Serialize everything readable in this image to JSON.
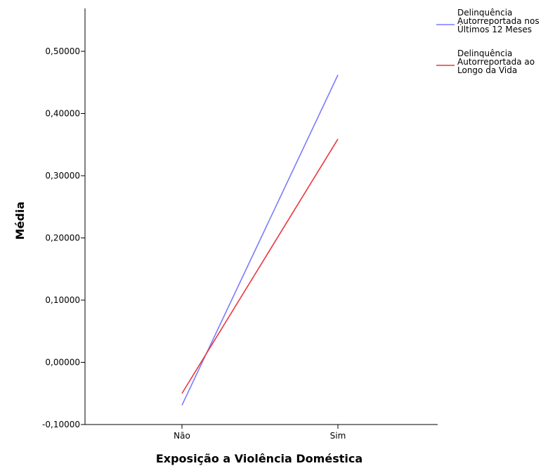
{
  "chart_data": {
    "type": "line",
    "title": "",
    "xlabel": "Exposição a Violência Doméstica",
    "ylabel": "Média",
    "categories": [
      "Não",
      "Sim"
    ],
    "ylim": [
      -0.1,
      0.55
    ],
    "yticks": [
      "-0,10000",
      "0,00000",
      "0,10000",
      "0,20000",
      "0,30000",
      "0,40000",
      "0,50000"
    ],
    "ytick_values": [
      -0.1,
      0.0,
      0.1,
      0.2,
      0.3,
      0.4,
      0.5
    ],
    "grid": false,
    "legend_position": "top-right",
    "series": [
      {
        "name_lines": [
          "Delinquência",
          "Autorreportada nos",
          "Últimos 12 Meses"
        ],
        "values": [
          -0.069,
          0.462
        ],
        "color": "#7b7bff"
      },
      {
        "name_lines": [
          "Delinquência",
          "Autorreportada ao",
          "Longo da Vida"
        ],
        "values": [
          -0.05,
          0.359
        ],
        "color": "#e8383d"
      }
    ]
  }
}
